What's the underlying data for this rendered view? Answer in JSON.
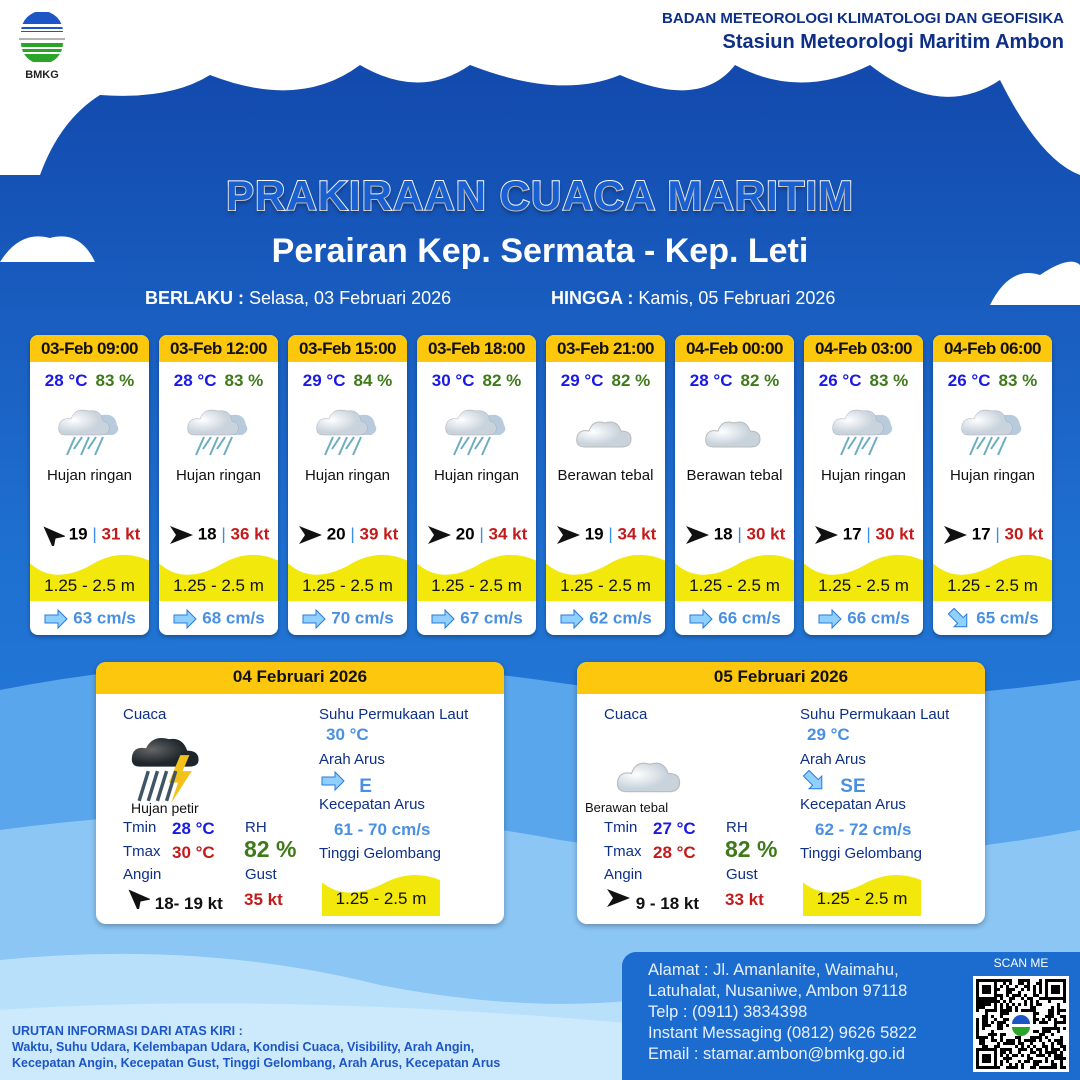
{
  "header": {
    "logo_text": "BMKG",
    "org_name": "BADAN METEOROLOGI KLIMATOLOGI DAN GEOFISIKA",
    "station": "Stasiun Meteorologi Maritim Ambon",
    "title": "PRAKIRAAN CUACA MARITIM",
    "area": "Perairan Kep. Sermata - Kep. Leti",
    "valid_from_label": "BERLAKU :",
    "valid_from": "Selasa, 03 Februari 2026",
    "valid_to_label": "HINGGA :",
    "valid_to": "Kamis, 05 Februari 2026"
  },
  "colors": {
    "header_yellow": "#fcc70c",
    "temp_blue": "#1a1ae6",
    "rh_green": "#3f7a1a",
    "gust_red": "#c31b1b",
    "wave_yellow": "#f2e80c",
    "current_blue": "#4a90e2"
  },
  "forecasts": [
    {
      "time": "03-Feb 09:00",
      "temp": "28 °C",
      "rh": "83 %",
      "icon": "rain-cloud",
      "condition": "Hujan ringan",
      "wind_dir": "NW",
      "wind": "19",
      "gust": "31 kt",
      "wave": "1.25 - 2.5 m",
      "current_dir": "E",
      "current": "63 cm/s"
    },
    {
      "time": "03-Feb 12:00",
      "temp": "28 °C",
      "rh": "83 %",
      "icon": "rain-cloud",
      "condition": "Hujan ringan",
      "wind_dir": "E",
      "wind": "18",
      "gust": "36 kt",
      "wave": "1.25 - 2.5 m",
      "current_dir": "E",
      "current": "68 cm/s"
    },
    {
      "time": "03-Feb 15:00",
      "temp": "29 °C",
      "rh": "84 %",
      "icon": "rain-cloud",
      "condition": "Hujan ringan",
      "wind_dir": "E",
      "wind": "20",
      "gust": "39 kt",
      "wave": "1.25 - 2.5 m",
      "current_dir": "E",
      "current": "70 cm/s"
    },
    {
      "time": "03-Feb 18:00",
      "temp": "30 °C",
      "rh": "82 %",
      "icon": "rain-cloud",
      "condition": "Hujan ringan",
      "wind_dir": "E",
      "wind": "20",
      "gust": "34 kt",
      "wave": "1.25 - 2.5 m",
      "current_dir": "E",
      "current": "67 cm/s"
    },
    {
      "time": "03-Feb 21:00",
      "temp": "29 °C",
      "rh": "82 %",
      "icon": "cloud",
      "condition": "Berawan tebal",
      "wind_dir": "E",
      "wind": "19",
      "gust": "34 kt",
      "wave": "1.25 - 2.5 m",
      "current_dir": "E",
      "current": "62 cm/s"
    },
    {
      "time": "04-Feb 00:00",
      "temp": "28 °C",
      "rh": "82 %",
      "icon": "cloud",
      "condition": "Berawan tebal",
      "wind_dir": "E",
      "wind": "18",
      "gust": "30 kt",
      "wave": "1.25 - 2.5 m",
      "current_dir": "E",
      "current": "66 cm/s"
    },
    {
      "time": "04-Feb 03:00",
      "temp": "26 °C",
      "rh": "83 %",
      "icon": "rain-cloud",
      "condition": "Hujan ringan",
      "wind_dir": "E",
      "wind": "17",
      "gust": "30 kt",
      "wave": "1.25 - 2.5 m",
      "current_dir": "E",
      "current": "66 cm/s"
    },
    {
      "time": "04-Feb 06:00",
      "temp": "26 °C",
      "rh": "83 %",
      "icon": "rain-cloud",
      "condition": "Hujan ringan",
      "wind_dir": "E",
      "wind": "17",
      "gust": "30 kt",
      "wave": "1.25 - 2.5 m",
      "current_dir": "SE",
      "current": "65 cm/s"
    }
  ],
  "labels": {
    "weather": "Cuaca",
    "tmin": "Tmin",
    "tmax": "Tmax",
    "wind": "Angin",
    "rh": "RH",
    "gust": "Gust",
    "sst": "Suhu Permukaan Laut",
    "current_dir": "Arah Arus",
    "current_speed": "Kecepatan Arus",
    "wave": "Tinggi Gelombang"
  },
  "daily": [
    {
      "date": "04 Februari 2026",
      "icon": "thunderstorm",
      "condition": "Hujan petir",
      "tmin": "28 °C",
      "tmax": "30 °C",
      "rh": "82 %",
      "wind_dir": "NW",
      "wind": "18- 19 kt",
      "gust": "35 kt",
      "sst": "30 °C",
      "current_dir": "E",
      "current_speed": "61  - 70 cm/s",
      "wave": "1.25 - 2.5 m"
    },
    {
      "date": "05 Februari 2026",
      "icon": "cloud",
      "condition": "Berawan tebal",
      "tmin": "27 °C",
      "tmax": "28 °C",
      "rh": "82 %",
      "wind_dir": "E",
      "wind": "9  - 18 kt",
      "gust": "33 kt",
      "sst": "29 °C",
      "current_dir": "SE",
      "current_speed": "62  - 72 cm/s",
      "wave": "1.25 - 2.5 m"
    }
  ],
  "footer": {
    "legend_title": "URUTAN INFORMASI DARI ATAS KIRI :",
    "legend_line1": "Waktu, Suhu Udara, Kelembapan Udara, Kondisi Cuaca, Visibility, Arah Angin,",
    "legend_line2": "Kecepatan Angin, Kecepatan Gust, Tinggi Gelombang, Arah Arus, Kecepatan Arus",
    "address1": "Alamat : Jl. Amanlanite, Waimahu,",
    "address2": "Latuhalat, Nusaniwe, Ambon 97118",
    "phone": "Telp     : (0911) 3834398",
    "im": "Instant Messaging (0812) 9626 5822",
    "email": "Email    : stamar.ambon@bmkg.go.id",
    "scan_label": "SCAN ME"
  }
}
